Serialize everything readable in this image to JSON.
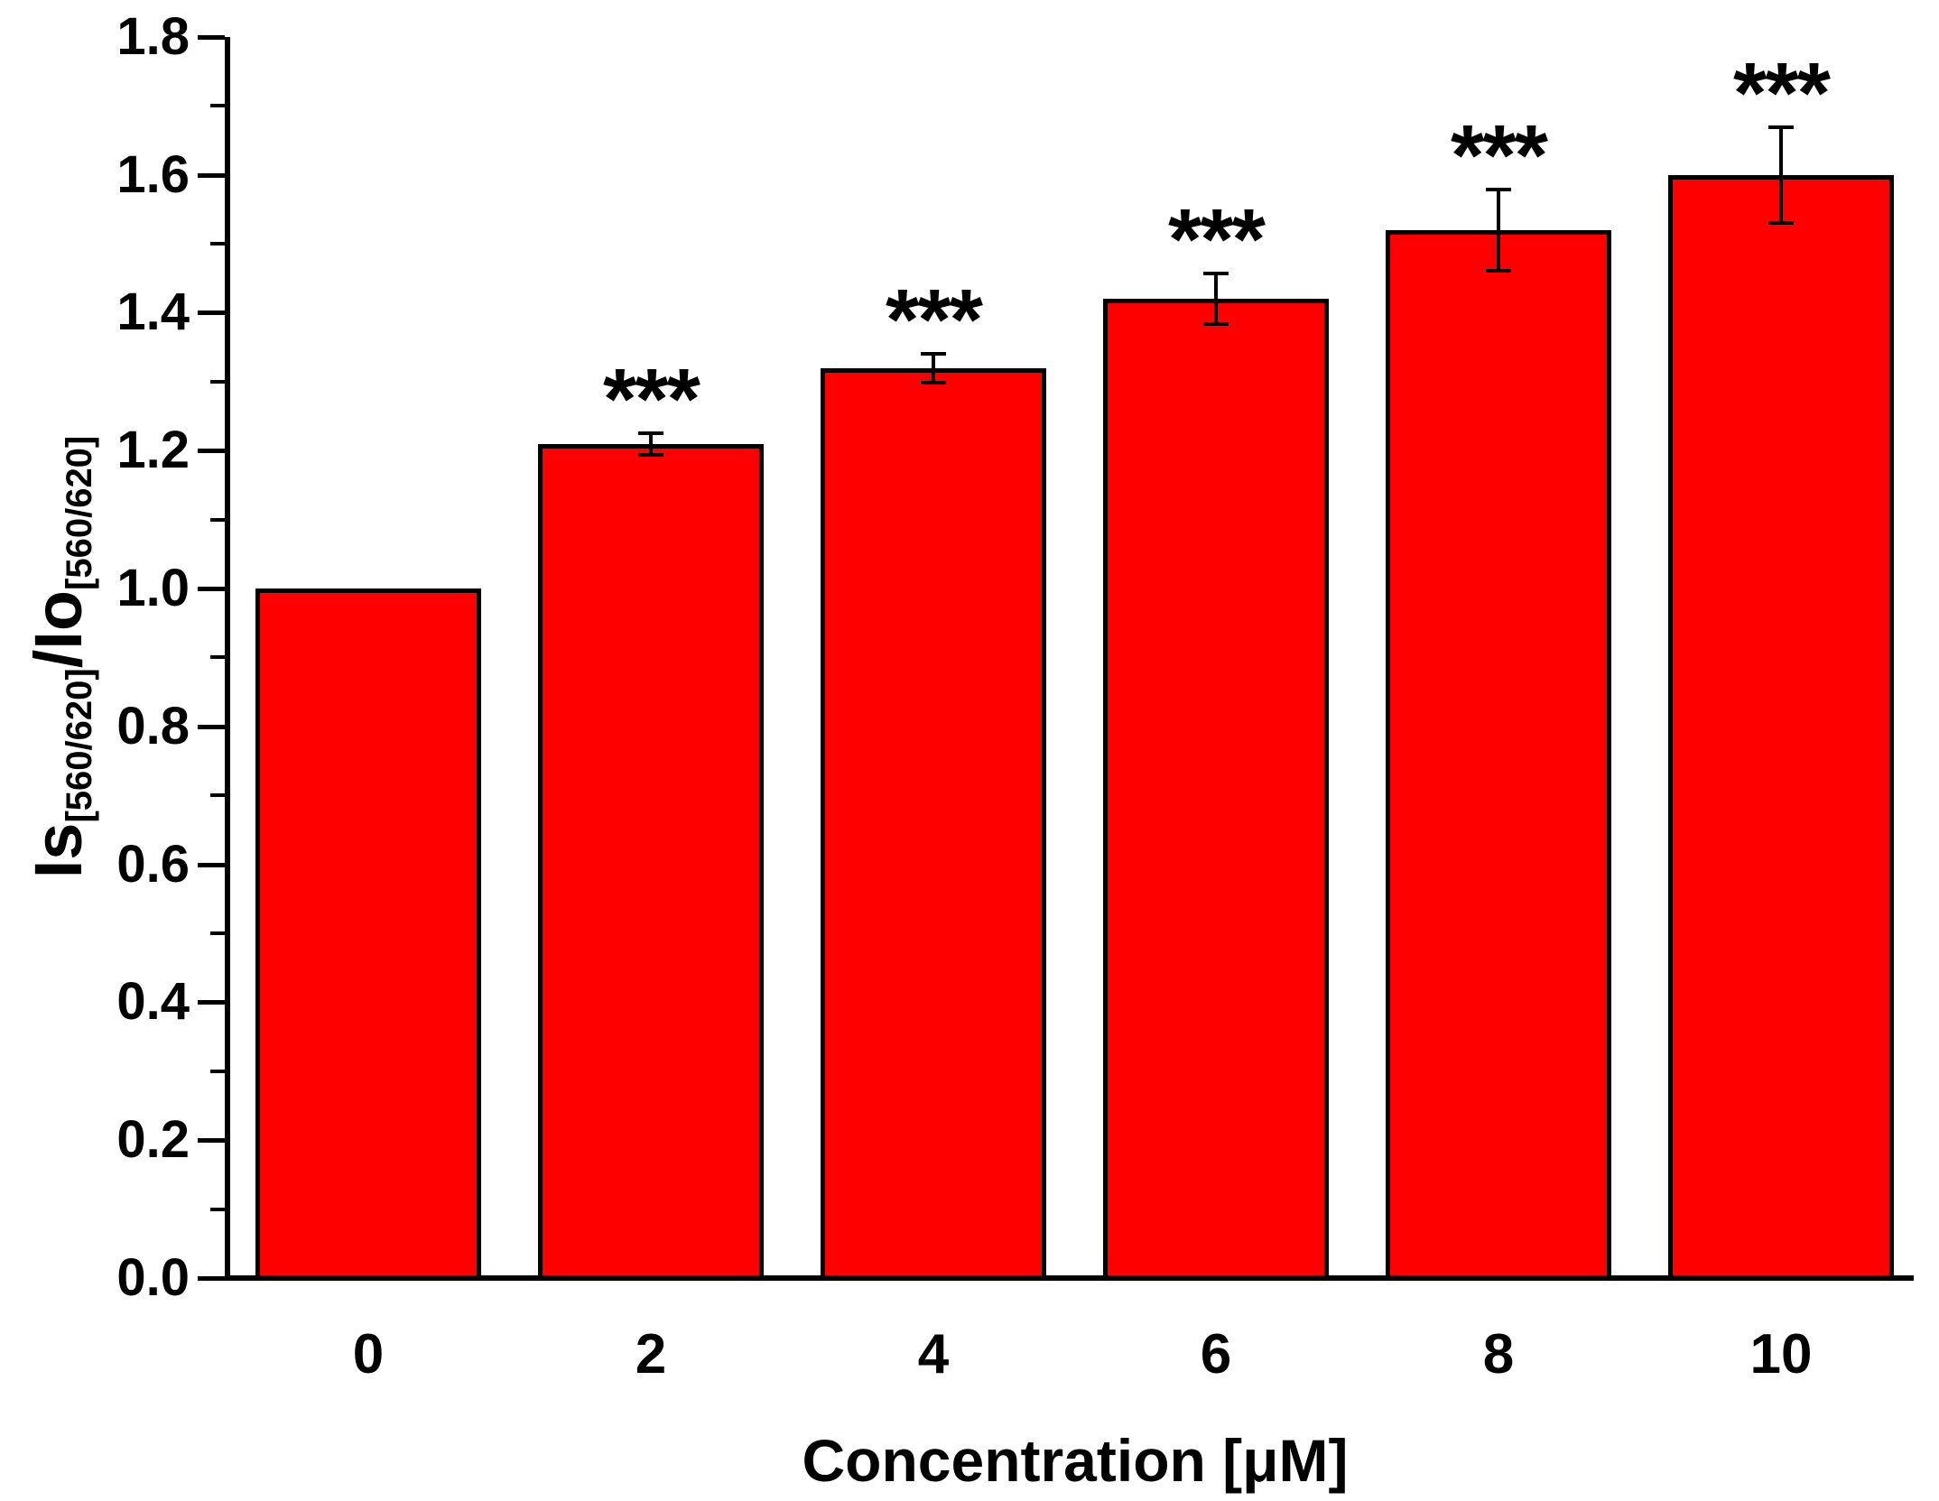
{
  "chart_data": {
    "type": "bar",
    "title": "",
    "xlabel": "Concentration [μM]",
    "ylabel_text": "Is[560/620]/Io[560/620]",
    "ylabel_parts": {
      "numerator": "Is",
      "numerator_sub": "[560/620]",
      "separator": "/",
      "denominator": "Io",
      "denominator_sub": "[560/620]"
    },
    "categories": [
      "0",
      "2",
      "4",
      "6",
      "8",
      "10"
    ],
    "values": [
      1.0,
      1.21,
      1.32,
      1.42,
      1.52,
      1.6
    ],
    "errors": [
      0,
      0.016,
      0.021,
      0.037,
      0.059,
      0.069
    ],
    "significance": [
      "",
      "***",
      "***",
      "***",
      "***",
      "***"
    ],
    "ylim": [
      0,
      1.8
    ],
    "ytick_labels": [
      "0.0",
      "0.2",
      "0.4",
      "0.6",
      "0.8",
      "1.0",
      "1.2",
      "1.4",
      "1.6",
      "1.8"
    ],
    "ytick_major_step": 0.2,
    "ytick_minor_step": 0.1,
    "grid": false,
    "legend_position": "none",
    "bar_color": "#FF0000",
    "bar_border_color": "#000000",
    "error_bar_color": "#000000",
    "significance_color": "#000000",
    "axis_color": "#000000",
    "background_color": "#FFFFFF"
  }
}
